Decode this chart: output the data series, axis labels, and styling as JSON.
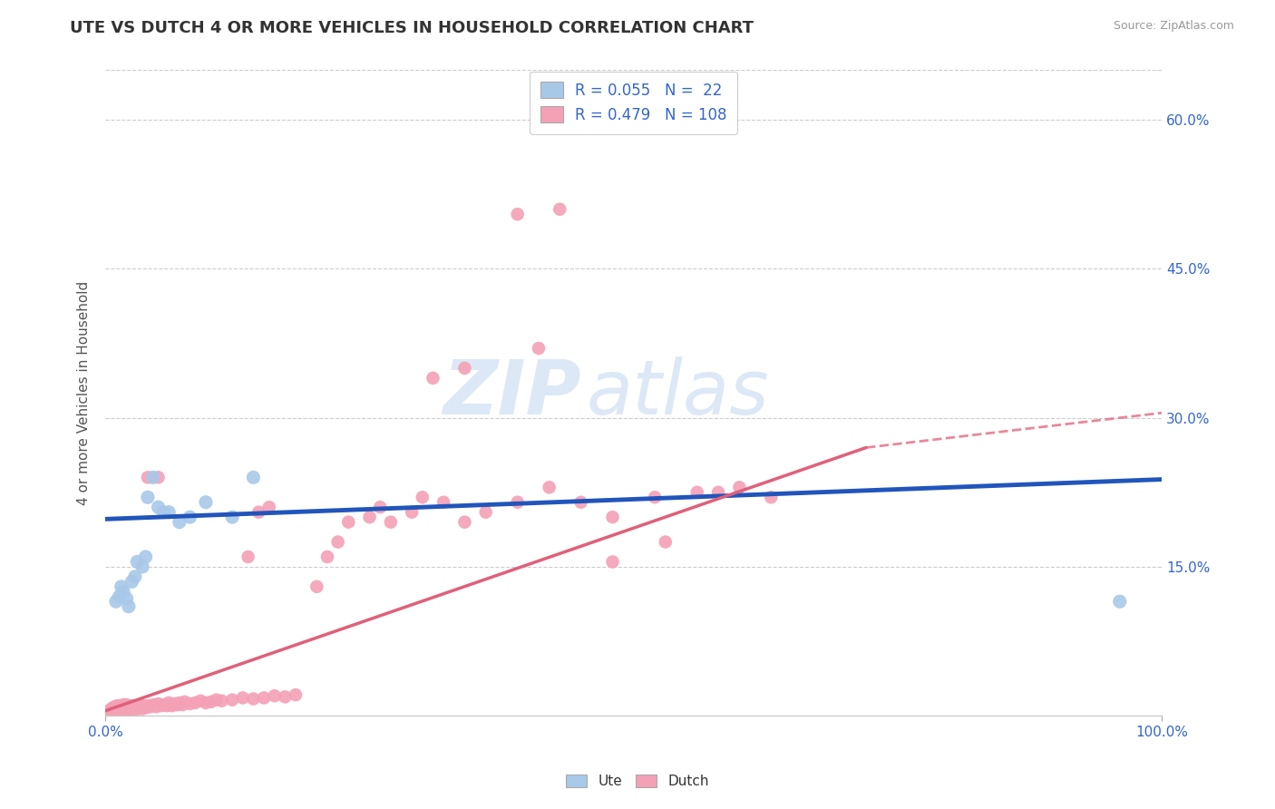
{
  "title": "UTE VS DUTCH 4 OR MORE VEHICLES IN HOUSEHOLD CORRELATION CHART",
  "source": "Source: ZipAtlas.com",
  "ylabel": "4 or more Vehicles in Household",
  "xlim": [
    0,
    1.0
  ],
  "ylim": [
    0,
    0.65
  ],
  "xtick_positions": [
    0.0,
    1.0
  ],
  "xtick_labels": [
    "0.0%",
    "100.0%"
  ],
  "ytick_values": [
    0.15,
    0.3,
    0.45,
    0.6
  ],
  "ytick_labels": [
    "15.0%",
    "30.0%",
    "45.0%",
    "60.0%"
  ],
  "legend_ute_R": "0.055",
  "legend_ute_N": "22",
  "legend_dutch_R": "0.479",
  "legend_dutch_N": "108",
  "ute_color": "#a8c8e8",
  "dutch_color": "#f4a0b5",
  "ute_line_color": "#2255bb",
  "dutch_line_color": "#e0607a",
  "watermark_color": "#dce8f5",
  "ute_x": [
    0.01,
    0.013,
    0.015,
    0.017,
    0.02,
    0.022,
    0.025,
    0.028,
    0.03,
    0.035,
    0.038,
    0.04,
    0.045,
    0.05,
    0.055,
    0.06,
    0.07,
    0.08,
    0.095,
    0.12,
    0.14,
    0.96
  ],
  "ute_y": [
    0.115,
    0.12,
    0.13,
    0.125,
    0.118,
    0.11,
    0.135,
    0.14,
    0.155,
    0.15,
    0.16,
    0.22,
    0.24,
    0.21,
    0.205,
    0.205,
    0.195,
    0.2,
    0.215,
    0.2,
    0.24,
    0.115
  ],
  "dutch_x": [
    0.003,
    0.004,
    0.005,
    0.006,
    0.006,
    0.007,
    0.007,
    0.008,
    0.008,
    0.009,
    0.009,
    0.01,
    0.01,
    0.011,
    0.011,
    0.012,
    0.012,
    0.013,
    0.013,
    0.014,
    0.015,
    0.015,
    0.016,
    0.017,
    0.017,
    0.018,
    0.019,
    0.02,
    0.02,
    0.021,
    0.022,
    0.023,
    0.024,
    0.025,
    0.026,
    0.027,
    0.028,
    0.029,
    0.03,
    0.031,
    0.032,
    0.033,
    0.034,
    0.035,
    0.036,
    0.038,
    0.04,
    0.042,
    0.045,
    0.048,
    0.05,
    0.053,
    0.055,
    0.058,
    0.06,
    0.063,
    0.065,
    0.068,
    0.07,
    0.073,
    0.075,
    0.08,
    0.085,
    0.09,
    0.095,
    0.1,
    0.105,
    0.11,
    0.12,
    0.13,
    0.14,
    0.15,
    0.16,
    0.17,
    0.18,
    0.2,
    0.21,
    0.22,
    0.23,
    0.25,
    0.26,
    0.27,
    0.29,
    0.3,
    0.32,
    0.34,
    0.36,
    0.39,
    0.42,
    0.45,
    0.48,
    0.52,
    0.56,
    0.6,
    0.34,
    0.31,
    0.43,
    0.41,
    0.39,
    0.63,
    0.58,
    0.53,
    0.48,
    0.155,
    0.145,
    0.135,
    0.05,
    0.04
  ],
  "dutch_y": [
    0.005,
    0.004,
    0.006,
    0.004,
    0.007,
    0.005,
    0.008,
    0.005,
    0.007,
    0.006,
    0.009,
    0.005,
    0.008,
    0.006,
    0.01,
    0.005,
    0.009,
    0.006,
    0.01,
    0.007,
    0.005,
    0.009,
    0.006,
    0.007,
    0.011,
    0.005,
    0.009,
    0.006,
    0.011,
    0.007,
    0.008,
    0.006,
    0.01,
    0.007,
    0.009,
    0.006,
    0.01,
    0.008,
    0.01,
    0.007,
    0.009,
    0.008,
    0.011,
    0.007,
    0.01,
    0.008,
    0.01,
    0.009,
    0.011,
    0.009,
    0.012,
    0.01,
    0.011,
    0.01,
    0.013,
    0.01,
    0.012,
    0.011,
    0.013,
    0.011,
    0.014,
    0.012,
    0.013,
    0.015,
    0.013,
    0.014,
    0.016,
    0.015,
    0.016,
    0.018,
    0.017,
    0.018,
    0.02,
    0.019,
    0.021,
    0.13,
    0.16,
    0.175,
    0.195,
    0.2,
    0.21,
    0.195,
    0.205,
    0.22,
    0.215,
    0.195,
    0.205,
    0.215,
    0.23,
    0.215,
    0.2,
    0.22,
    0.225,
    0.23,
    0.35,
    0.34,
    0.51,
    0.37,
    0.505,
    0.22,
    0.225,
    0.175,
    0.155,
    0.21,
    0.205,
    0.16,
    0.24,
    0.24
  ],
  "dutch_line_x0": 0.0,
  "dutch_line_y0": 0.005,
  "dutch_line_x1": 0.72,
  "dutch_line_y1": 0.27,
  "dutch_line_xdash": 0.72,
  "dutch_line_xdash_end": 1.0,
  "dutch_line_ydash_end": 0.305,
  "ute_line_x0": 0.0,
  "ute_line_y0": 0.198,
  "ute_line_x1": 1.0,
  "ute_line_y1": 0.238
}
